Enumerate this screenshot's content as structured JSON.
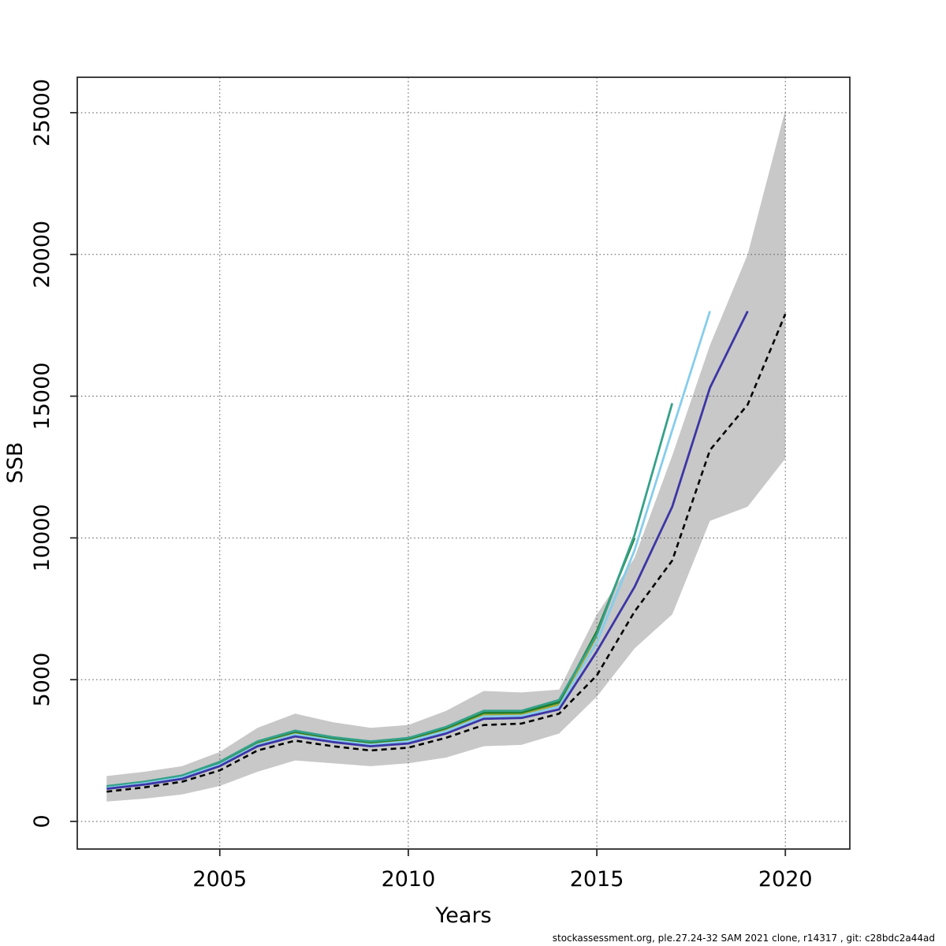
{
  "footer": {
    "text": "stockassessment.org, ple.27.24-32 SAM 2021 clone, r14317 , git: c28bdc2a44ad"
  },
  "colors": {
    "band": "#c8c8c8",
    "grid": "#5a5a5a",
    "axis": "#2b2b2b",
    "assessment": "#000000",
    "retro_2019": "#3C35A5",
    "retro_2018": "#86CDEC",
    "retro_2017": "#35A189",
    "retro_2016": "#1F7D2C",
    "retro_2015": "#A8A838"
  },
  "chart_data": {
    "type": "line",
    "title": "",
    "xlabel": "Years",
    "ylabel": "SSB",
    "xlim": [
      2001.22,
      2021.71
    ],
    "ylim": [
      -975,
      26250
    ],
    "x_ticks": [
      2005,
      2010,
      2015,
      2020
    ],
    "y_ticks": [
      0,
      5000,
      10000,
      15000,
      20000,
      25000
    ],
    "grid": "dotted",
    "legend": "none",
    "band": {
      "name": "confidence-interval",
      "color": "#c8c8c8",
      "years": [
        2002,
        2003,
        2004,
        2005,
        2006,
        2007,
        2008,
        2009,
        2010,
        2011,
        2012,
        2013,
        2014,
        2015,
        2016,
        2017,
        2018,
        2019,
        2020
      ],
      "upper": [
        1600,
        1750,
        1950,
        2450,
        3300,
        3800,
        3500,
        3300,
        3400,
        3900,
        4600,
        4550,
        4650,
        7300,
        9300,
        12900,
        16800,
        20000,
        25100
      ],
      "lower": [
        700,
        800,
        950,
        1250,
        1750,
        2150,
        2050,
        1950,
        2050,
        2250,
        2650,
        2700,
        3100,
        4400,
        6100,
        7300,
        10600,
        11100,
        12800
      ]
    },
    "series": [
      {
        "name": "retro-peel-2015",
        "color": "#A8A838",
        "dashed": false,
        "years": [
          2002,
          2003,
          2004,
          2005,
          2006,
          2007,
          2008,
          2009,
          2010,
          2011,
          2012,
          2013,
          2014,
          2015
        ],
        "values": [
          1200,
          1360,
          1580,
          2050,
          2760,
          3120,
          2900,
          2750,
          2870,
          3240,
          3760,
          3780,
          4120,
          6550
        ]
      },
      {
        "name": "retro-peel-2016",
        "color": "#1F7D2C",
        "dashed": false,
        "years": [
          2002,
          2003,
          2004,
          2005,
          2006,
          2007,
          2008,
          2009,
          2010,
          2011,
          2012,
          2013,
          2014,
          2015,
          2016
        ],
        "values": [
          1220,
          1380,
          1600,
          2080,
          2800,
          3160,
          2940,
          2790,
          2910,
          3290,
          3830,
          3840,
          4200,
          6700,
          10000
        ]
      },
      {
        "name": "retro-peel-2017",
        "color": "#35A189",
        "dashed": false,
        "years": [
          2002,
          2003,
          2004,
          2005,
          2006,
          2007,
          2008,
          2009,
          2010,
          2011,
          2012,
          2013,
          2014,
          2015,
          2016,
          2017
        ],
        "values": [
          1240,
          1400,
          1620,
          2100,
          2820,
          3200,
          2970,
          2820,
          2940,
          3330,
          3900,
          3900,
          4280,
          6600,
          10100,
          14750
        ]
      },
      {
        "name": "retro-peel-2018",
        "color": "#86CDEC",
        "dashed": false,
        "years": [
          2002,
          2003,
          2004,
          2005,
          2006,
          2007,
          2008,
          2009,
          2010,
          2011,
          2012,
          2013,
          2014,
          2015,
          2016,
          2017,
          2018
        ],
        "values": [
          1180,
          1340,
          1550,
          2000,
          2700,
          3060,
          2860,
          2700,
          2820,
          3180,
          3700,
          3720,
          4050,
          6320,
          9560,
          13800,
          18000
        ]
      },
      {
        "name": "retro-peel-2019",
        "color": "#3C35A5",
        "dashed": false,
        "years": [
          2002,
          2003,
          2004,
          2005,
          2006,
          2007,
          2008,
          2009,
          2010,
          2011,
          2012,
          2013,
          2014,
          2015,
          2016,
          2017,
          2018,
          2019
        ],
        "values": [
          1150,
          1300,
          1500,
          1950,
          2650,
          3000,
          2800,
          2650,
          2750,
          3100,
          3620,
          3650,
          3950,
          6000,
          8270,
          11100,
          15300,
          18000
        ]
      },
      {
        "name": "current-assessment-2020",
        "color": "#000000",
        "dashed": true,
        "years": [
          2002,
          2003,
          2004,
          2005,
          2006,
          2007,
          2008,
          2009,
          2010,
          2011,
          2012,
          2013,
          2014,
          2015,
          2016,
          2017,
          2018,
          2019,
          2020
        ],
        "values": [
          1050,
          1200,
          1400,
          1800,
          2500,
          2850,
          2650,
          2500,
          2600,
          2950,
          3400,
          3450,
          3800,
          5150,
          7400,
          9200,
          13100,
          14700,
          17900
        ]
      }
    ]
  }
}
